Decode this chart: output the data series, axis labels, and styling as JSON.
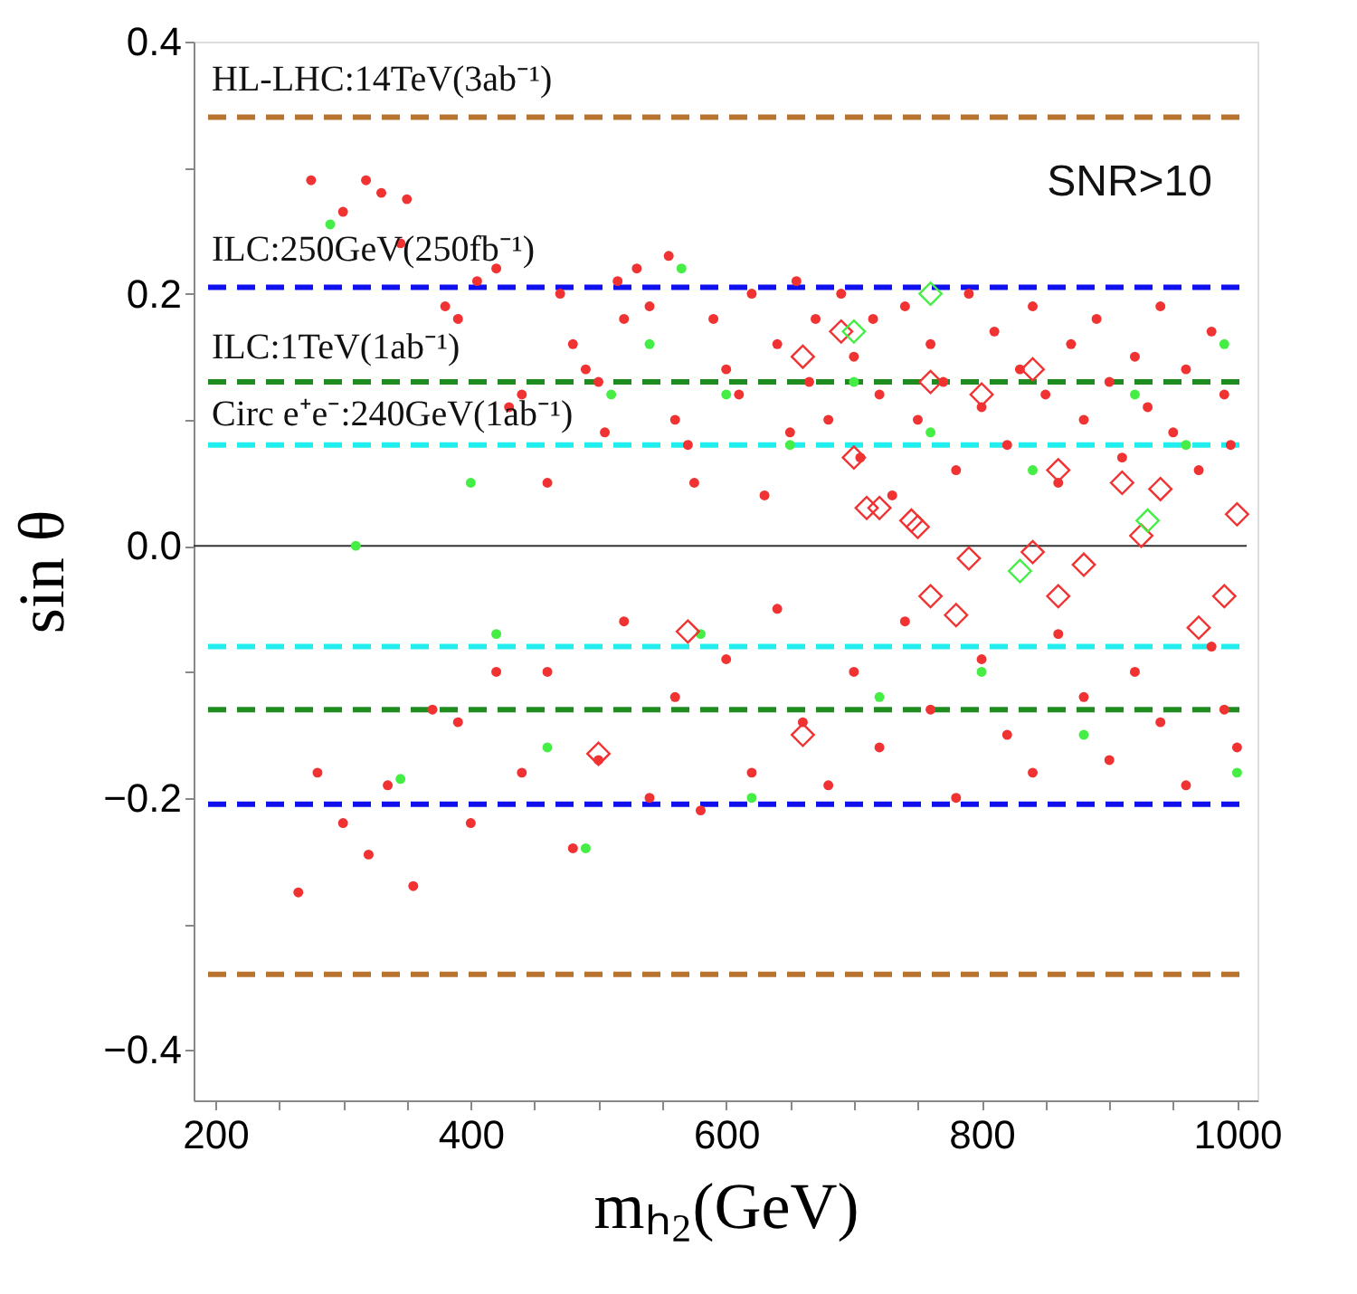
{
  "chart_data": {
    "type": "scatter",
    "xlabel": "mₕ₂(GeV)",
    "ylabel": "sin θ",
    "annotations": [
      "SNR>10",
      "HL-LHC:14TeV(3ab⁻¹)",
      "ILC:250GeV(250fb⁻¹)",
      "ILC:1TeV(1ab⁻¹)",
      "Circ e⁺e⁻:240GeV(1ab⁻¹)"
    ],
    "xlim": [
      183,
      1016
    ],
    "ylim": [
      -0.44,
      0.4
    ],
    "xticks": [
      200,
      {
        "value": 250,
        "label": null
      },
      {
        "value": 300,
        "label": null
      },
      {
        "value": 350,
        "label": null
      },
      400,
      {
        "value": 450,
        "label": null
      },
      {
        "value": 500,
        "label": null
      },
      {
        "value": 550,
        "label": null
      },
      600,
      {
        "value": 650,
        "label": null
      },
      {
        "value": 700,
        "label": null
      },
      {
        "value": 750,
        "label": null
      },
      800,
      {
        "value": 850,
        "label": null
      },
      {
        "value": 900,
        "label": null
      },
      {
        "value": 950,
        "label": null
      },
      1000
    ],
    "yticks": [
      {
        "value": -0.4,
        "label": "−0.4"
      },
      {
        "value": -0.3,
        "label": null
      },
      {
        "value": -0.2,
        "label": "−0.2"
      },
      {
        "value": -0.1,
        "label": null
      },
      {
        "value": 0,
        "label": "0.0"
      },
      {
        "value": 0.1,
        "label": null
      },
      {
        "value": 0.2,
        "label": "0.2"
      },
      {
        "value": 0.3,
        "label": null
      },
      {
        "value": 0.4,
        "label": "0.4"
      }
    ],
    "grid": false,
    "ref_lines": [
      {
        "axis": "y",
        "value": 0,
        "label": null,
        "color": "#333333",
        "line_style": "solid"
      },
      {
        "axis": "y",
        "value": 0.34,
        "label": null,
        "color": "#b8732e",
        "line_style": "dashed"
      },
      {
        "axis": "y",
        "value": -0.34,
        "label": null,
        "color": "#b8732e",
        "line_style": "dashed"
      },
      {
        "axis": "y",
        "value": 0.205,
        "label": null,
        "color": "#1010ee",
        "line_style": "dashed"
      },
      {
        "axis": "y",
        "value": -0.205,
        "label": null,
        "color": "#1010ee",
        "line_style": "dashed"
      },
      {
        "axis": "y",
        "value": 0.13,
        "label": null,
        "color": "#1e8c1e",
        "line_style": "dashed"
      },
      {
        "axis": "y",
        "value": -0.13,
        "label": null,
        "color": "#1e8c1e",
        "line_style": "dashed"
      },
      {
        "axis": "y",
        "value": 0.08,
        "label": null,
        "color": "#22eeee",
        "line_style": "dashed"
      },
      {
        "axis": "y",
        "value": -0.08,
        "label": null,
        "color": "#22eeee",
        "line_style": "dashed"
      }
    ],
    "series": [
      {
        "color": "#f03232",
        "marker": "circle",
        "x": [
          265,
          275,
          300,
          318,
          330,
          350,
          345,
          380,
          390,
          405,
          420,
          430,
          440,
          460,
          470,
          480,
          490,
          500,
          505,
          515,
          520,
          530,
          540,
          555,
          560,
          570,
          575,
          590,
          600,
          610,
          620,
          630,
          640,
          650,
          655,
          665,
          670,
          680,
          690,
          700,
          705,
          715,
          720,
          730,
          740,
          750,
          760,
          770,
          780,
          790,
          800,
          810,
          820,
          830,
          840,
          850,
          860,
          870,
          880,
          890,
          900,
          910,
          920,
          930,
          940,
          950,
          960,
          970,
          980,
          990,
          995,
          280,
          300,
          320,
          335,
          355,
          370,
          390,
          400,
          420,
          440,
          460,
          480,
          500,
          520,
          540,
          560,
          580,
          600,
          620,
          640,
          660,
          680,
          700,
          720,
          740,
          760,
          780,
          800,
          820,
          840,
          860,
          880,
          900,
          920,
          940,
          960,
          980,
          990,
          1000
        ],
        "values": [
          -0.275,
          0.29,
          0.265,
          0.29,
          0.28,
          0.275,
          0.24,
          0.19,
          0.18,
          0.21,
          0.22,
          0.11,
          0.12,
          0.05,
          0.2,
          0.16,
          0.14,
          0.13,
          0.09,
          0.21,
          0.18,
          0.22,
          0.19,
          0.23,
          0.1,
          0.08,
          0.05,
          0.18,
          0.14,
          0.12,
          0.2,
          0.04,
          0.16,
          0.09,
          0.21,
          0.13,
          0.18,
          0.1,
          0.2,
          0.15,
          0.07,
          0.18,
          0.12,
          0.04,
          0.19,
          0.1,
          0.16,
          0.13,
          0.06,
          0.2,
          0.11,
          0.17,
          0.08,
          0.14,
          0.19,
          0.12,
          0.05,
          0.16,
          0.1,
          0.18,
          0.13,
          0.07,
          0.15,
          0.11,
          0.19,
          0.09,
          0.14,
          0.06,
          0.17,
          0.12,
          0.08,
          -0.18,
          -0.22,
          -0.245,
          -0.19,
          -0.27,
          -0.13,
          -0.14,
          -0.22,
          -0.1,
          -0.18,
          -0.1,
          -0.24,
          -0.17,
          -0.06,
          -0.2,
          -0.12,
          -0.21,
          -0.09,
          -0.18,
          -0.05,
          -0.14,
          -0.19,
          -0.1,
          -0.16,
          -0.06,
          -0.13,
          -0.2,
          -0.09,
          -0.15,
          -0.18,
          -0.07,
          -0.12,
          -0.17,
          -0.1,
          -0.14,
          -0.19,
          -0.08,
          -0.13,
          -0.16
        ]
      },
      {
        "color": "#44ee44",
        "marker": "circle",
        "x": [
          290,
          310,
          330,
          345,
          400,
          420,
          460,
          490,
          510,
          540,
          565,
          580,
          600,
          620,
          650,
          700,
          720,
          760,
          800,
          840,
          880,
          920,
          960,
          1000,
          990
        ],
        "values": [
          0.255,
          0.0,
          null,
          -0.185,
          0.05,
          -0.07,
          -0.16,
          -0.24,
          0.12,
          0.16,
          0.22,
          -0.07,
          0.12,
          -0.2,
          0.08,
          0.13,
          -0.12,
          0.09,
          -0.1,
          0.06,
          -0.15,
          0.12,
          0.08,
          -0.18,
          0.16
        ]
      },
      {
        "color": "#f03232",
        "marker": "diamond",
        "x": [
          660,
          690,
          700,
          710,
          720,
          745,
          750,
          760,
          790,
          800,
          840,
          860,
          880,
          910,
          925,
          940,
          1000,
          570,
          500,
          660,
          760,
          780,
          840,
          860,
          990,
          970
        ],
        "values": [
          0.15,
          0.17,
          0.07,
          0.03,
          0.03,
          0.02,
          0.015,
          0.13,
          -0.01,
          0.12,
          0.14,
          0.06,
          -0.015,
          0.05,
          0.008,
          0.045,
          0.025,
          -0.068,
          -0.165,
          -0.15,
          -0.04,
          -0.055,
          -0.005,
          -0.04,
          -0.04,
          -0.065
        ]
      },
      {
        "color": "#44ee44",
        "marker": "diamond",
        "x": [
          700,
          830,
          930,
          760
        ],
        "values": [
          0.17,
          -0.02,
          0.02,
          0.2
        ]
      }
    ]
  }
}
